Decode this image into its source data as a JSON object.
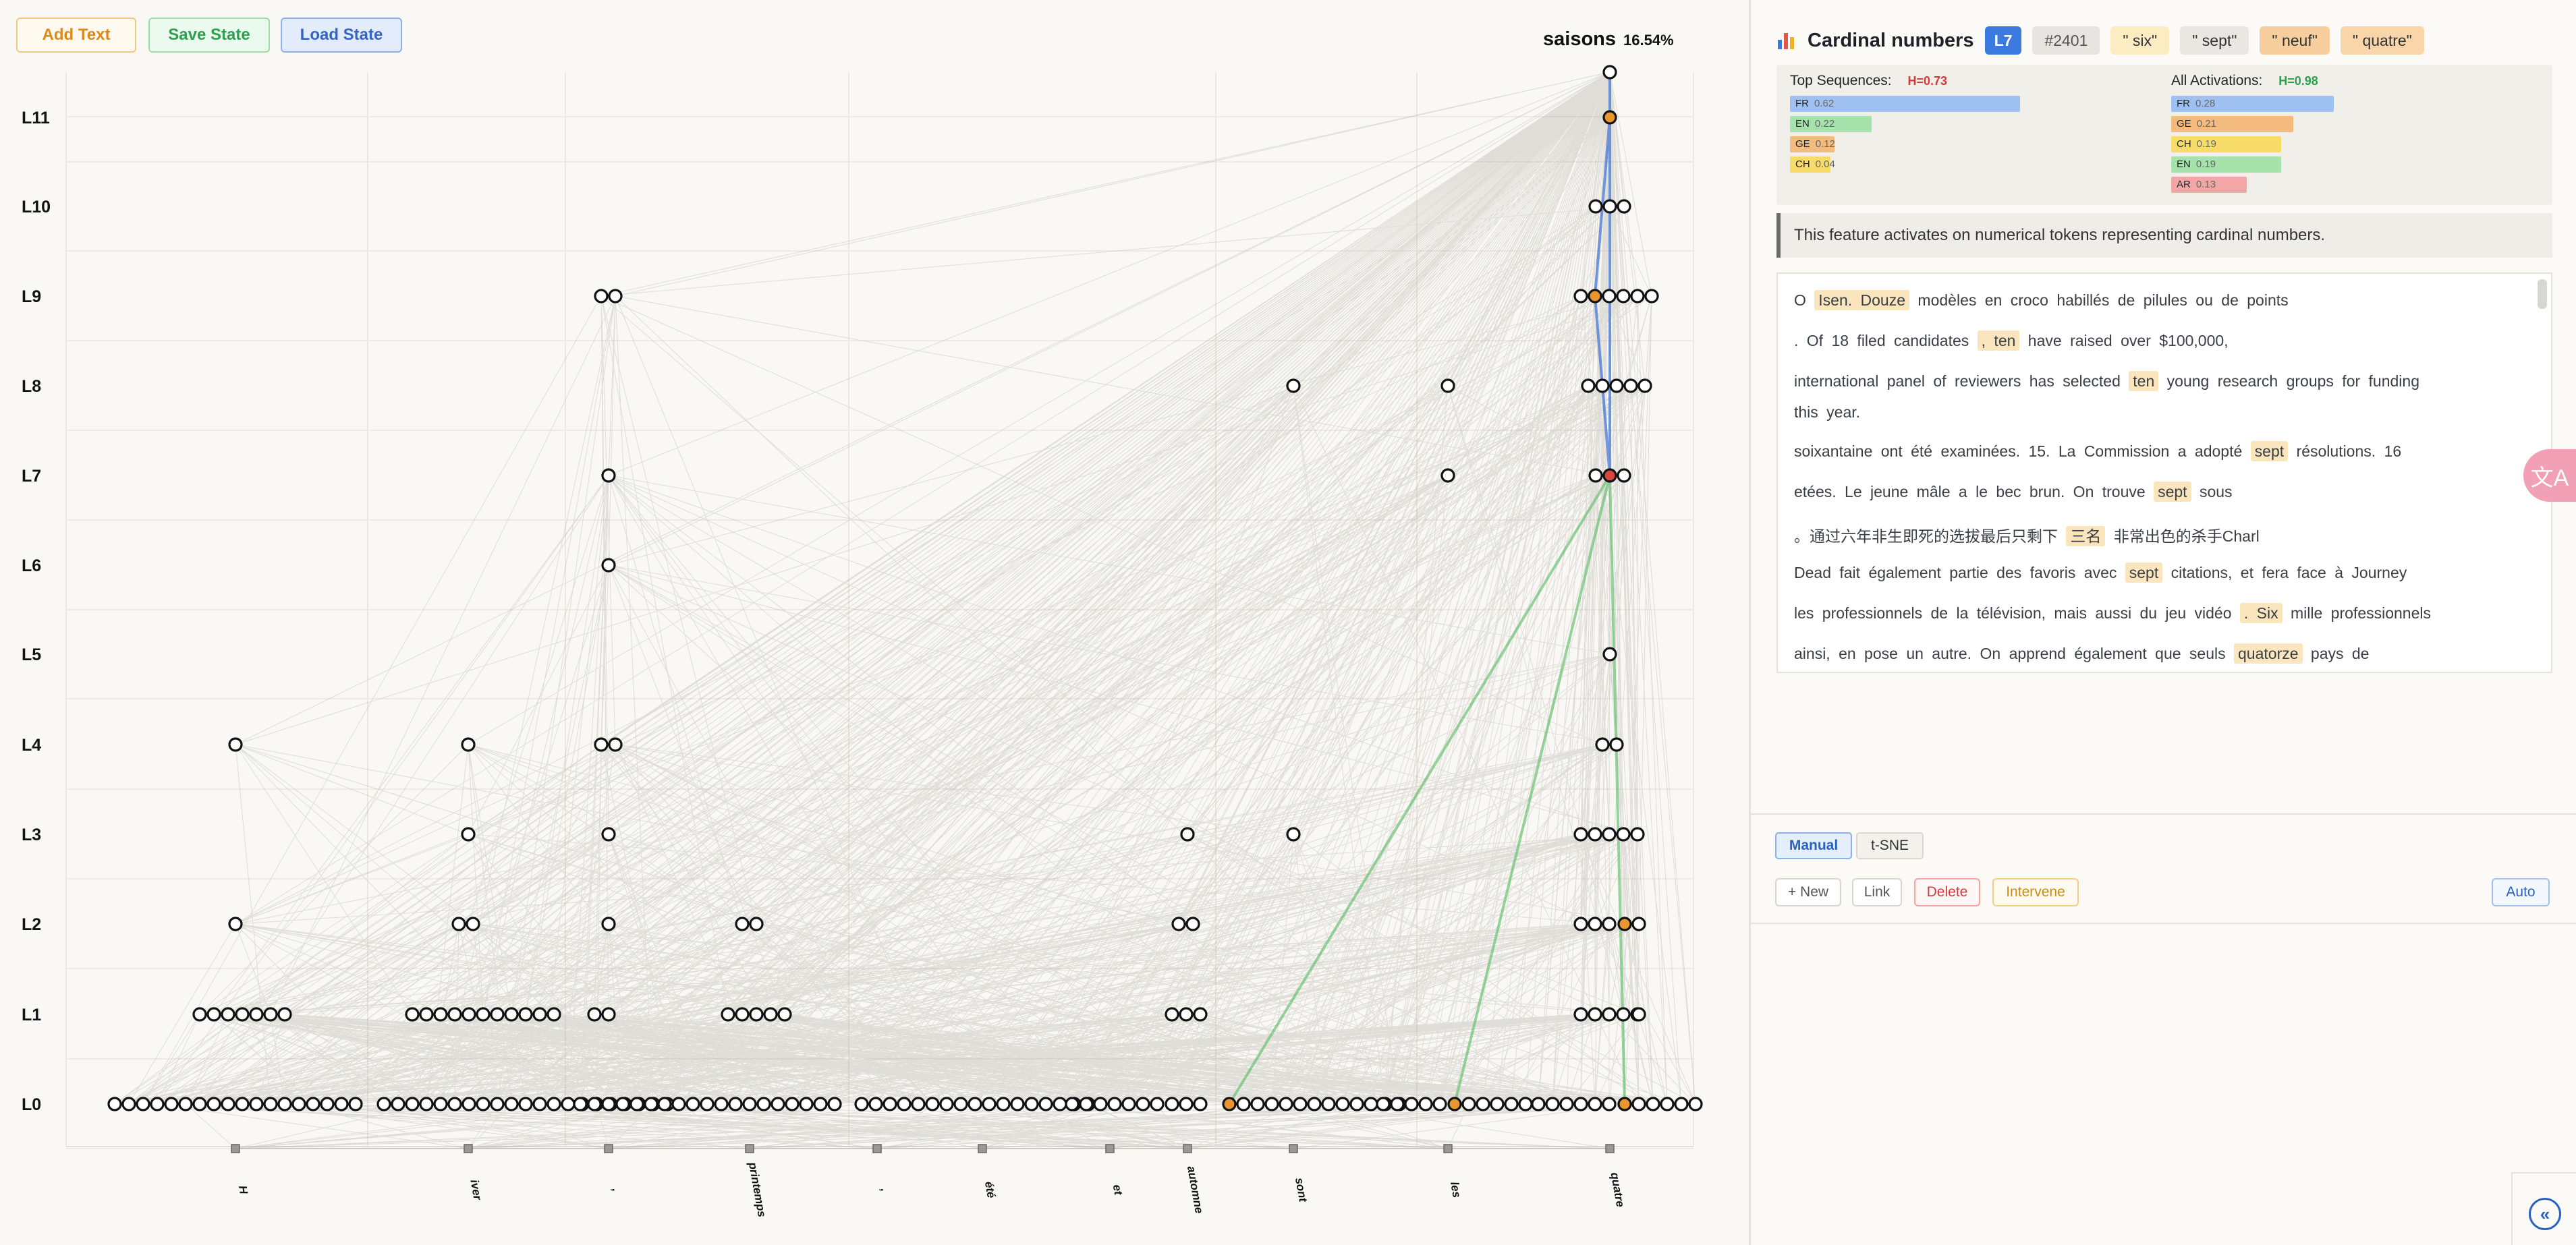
{
  "toolbar": {
    "add_text": "Add Text",
    "save_state": "Save State",
    "load_state": "Load State"
  },
  "graph": {
    "top_token": "saisons",
    "top_prob": "16.54%",
    "layers": [
      "L11",
      "L10",
      "L9",
      "L8",
      "L7",
      "L6",
      "L5",
      "L4",
      "L3",
      "L2",
      "L1",
      "L0"
    ],
    "tokens": [
      "H",
      "iver",
      ",",
      "printemps",
      ",",
      "été",
      "et",
      "automne",
      "sont",
      "les",
      "quatre"
    ],
    "colors": {
      "edge": "#9a9690",
      "edge_blue": "#3b6fd6",
      "edge_green": "#5fbf6a",
      "node_orange": "#e8962d",
      "node_red": "#d9463e"
    }
  },
  "feature": {
    "icon": "bar-chart-icon",
    "title": "Cardinal numbers",
    "layer": "L7",
    "id": "#2401",
    "tokens": [
      "\" six\"",
      "\" sept\"",
      "\" neuf\"",
      "\" quatre\""
    ],
    "top_sequences": {
      "label": "Top Sequences:",
      "entropy": "H=0.73",
      "items": [
        {
          "lang": "FR",
          "value": 0.62,
          "value_label": "0.62",
          "color": "#9fc1f2"
        },
        {
          "lang": "EN",
          "value": 0.22,
          "value_label": "0.22",
          "color": "#a6e3ac"
        },
        {
          "lang": "GE",
          "value": 0.12,
          "value_label": "0.12",
          "color": "#f3bb7e"
        },
        {
          "lang": "CH",
          "value": 0.04,
          "value_label": "0.04",
          "color": "#f7dc6a"
        }
      ]
    },
    "all_activations": {
      "label": "All Activations:",
      "entropy": "H=0.98",
      "items": [
        {
          "lang": "FR",
          "value": 0.28,
          "value_label": "0.28",
          "color": "#9fc1f2"
        },
        {
          "lang": "GE",
          "value": 0.21,
          "value_label": "0.21",
          "color": "#f3bb7e"
        },
        {
          "lang": "CH",
          "value": 0.19,
          "value_label": "0.19",
          "color": "#f7dc6a"
        },
        {
          "lang": "EN",
          "value": 0.19,
          "value_label": "0.19",
          "color": "#a6e3ac"
        },
        {
          "lang": "AR",
          "value": 0.13,
          "value_label": "0.13",
          "color": "#f2a6a6"
        }
      ]
    },
    "description": "This feature activates on numerical tokens representing cardinal numbers.",
    "examples": [
      {
        "pre": "O ",
        "hl": "Isen. Douze",
        "post": " modèles en croco habillés de pilules ou de points"
      },
      {
        "pre": ". Of 18 filed candidates ",
        "hl": ", ten",
        "post": " have raised over $100,000,"
      },
      {
        "pre": "international panel of reviewers has selected ",
        "hl": "ten",
        "post": " young research groups for funding"
      },
      {
        "pre": "this year.",
        "hl": "",
        "post": ""
      },
      {
        "pre": "soixantaine ont été examinées. 15. La Commission a adopté ",
        "hl": "sept",
        "post": " résolutions. 16"
      },
      {
        "pre": "etées. Le jeune mâle a le bec brun. On trouve ",
        "hl": "sept",
        "post": " sous"
      },
      {
        "pre": "。通过六年非生即死的选拔最后只剩下 ",
        "hl": "三名",
        "post": " 非常出色的杀手Charl"
      },
      {
        "pre": "Dead fait également partie des favoris avec ",
        "hl": "sept",
        "post": " citations, et fera face à Journey"
      },
      {
        "pre": "les professionnels de la télévision, mais aussi du jeu vidéo ",
        "hl": ". Six",
        "post": " mille professionnels"
      },
      {
        "pre": "ainsi, en pose un autre. On apprend également que seuls ",
        "hl": "quatorze",
        "post": " pays de"
      }
    ]
  },
  "controls": {
    "tabs": [
      "Manual",
      "t-SNE"
    ],
    "new": "+ New",
    "link": "Link",
    "delete": "Delete",
    "intervene": "Intervene",
    "auto": "Auto"
  }
}
